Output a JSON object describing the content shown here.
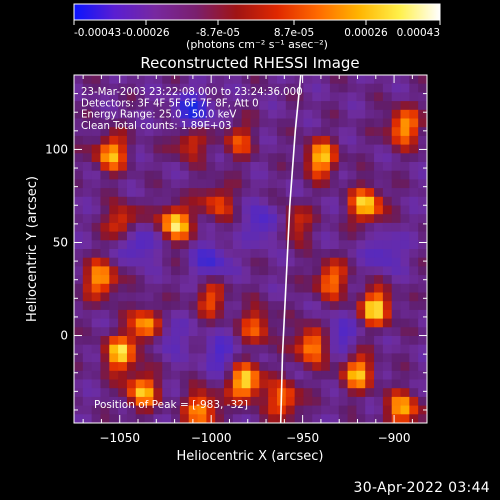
{
  "colorbar": {
    "tick_labels": [
      "-0.00043",
      "-0.00026",
      "-8.7e-05",
      "8.7e-05",
      "0.00026",
      "0.00043"
    ],
    "units_label": "(photons cm⁻² s⁻¹ asec⁻²)",
    "stops": [
      "#0a14ff",
      "#5a1ed2",
      "#7828a0",
      "#7a1f6e",
      "#a01414",
      "#e02800",
      "#ff6a00",
      "#ffb400",
      "#fff04a",
      "#ffffff"
    ]
  },
  "chart_data": {
    "type": "heatmap",
    "title": "Reconstructed RHESSI Image",
    "xlabel": "Heliocentric X (arcsec)",
    "ylabel": "Heliocentric Y (arcsec)",
    "xlim": [
      -1075,
      -882
    ],
    "ylim": [
      -47,
      140
    ],
    "x_ticks": [
      -1050,
      -1000,
      -950,
      -900
    ],
    "y_ticks": [
      0,
      50,
      100
    ],
    "x_tick_labels": [
      "−1050",
      "−1000",
      "−950",
      "−900"
    ],
    "y_tick_labels": [
      "0",
      "50",
      "100"
    ],
    "annotations": [
      "23-Mar-2003 23:22:08.000 to 23:24:36.000",
      "Detectors: 3F 4F 5F 6F 7F 8F, Att 0",
      "Energy Range: 25.0 - 50.0 keV",
      "Clean     Total counts: 1.89E+03"
    ],
    "peak_label": "Position of Peak = [-983, -32]",
    "limb_curve": [
      [
        -962,
        -47
      ],
      [
        -961,
        -10
      ],
      [
        -959,
        30
      ],
      [
        -957,
        70
      ],
      [
        -954,
        110
      ],
      [
        -951,
        140
      ]
    ],
    "hot_spots": [
      {
        "x": -1055,
        "y": 98,
        "level": 0.8
      },
      {
        "x": -1048,
        "y": 60,
        "level": 0.7
      },
      {
        "x": -1060,
        "y": 30,
        "level": 0.8
      },
      {
        "x": -1035,
        "y": 5,
        "level": 0.9
      },
      {
        "x": -1050,
        "y": -10,
        "level": 0.85
      },
      {
        "x": -1038,
        "y": -30,
        "level": 0.8
      },
      {
        "x": -1012,
        "y": 105,
        "level": 0.6
      },
      {
        "x": -1020,
        "y": 60,
        "level": 0.95
      },
      {
        "x": -997,
        "y": 72,
        "level": 0.55
      },
      {
        "x": -1000,
        "y": 20,
        "level": 0.55
      },
      {
        "x": -985,
        "y": 105,
        "level": 0.5
      },
      {
        "x": -981,
        "y": -25,
        "level": 1.0
      },
      {
        "x": -1005,
        "y": -40,
        "level": 0.8
      },
      {
        "x": -975,
        "y": 5,
        "level": 0.6
      },
      {
        "x": -940,
        "y": 95,
        "level": 0.85
      },
      {
        "x": -915,
        "y": 70,
        "level": 0.9
      },
      {
        "x": -895,
        "y": 112,
        "level": 0.8
      },
      {
        "x": -935,
        "y": 30,
        "level": 0.7
      },
      {
        "x": -910,
        "y": 15,
        "level": 0.9
      },
      {
        "x": -945,
        "y": -5,
        "level": 0.85
      },
      {
        "x": -920,
        "y": -20,
        "level": 0.8
      },
      {
        "x": -960,
        "y": -35,
        "level": 0.7
      },
      {
        "x": -895,
        "y": -40,
        "level": 0.8
      },
      {
        "x": -955,
        "y": 60,
        "level": 0.55
      }
    ],
    "cold_spots": [
      {
        "x": -1010,
        "y": 120,
        "level": 0.9
      },
      {
        "x": -1040,
        "y": 50,
        "level": 0.7
      },
      {
        "x": -1000,
        "y": 40,
        "level": 0.6
      },
      {
        "x": -1025,
        "y": 0,
        "level": 0.5
      },
      {
        "x": -970,
        "y": 60,
        "level": 0.6
      },
      {
        "x": -930,
        "y": 0,
        "level": 0.5
      },
      {
        "x": -995,
        "y": -10,
        "level": 0.5
      },
      {
        "x": -905,
        "y": 45,
        "level": 0.5
      }
    ]
  },
  "footer": {
    "timestamp": "30-Apr-2022 03:44"
  }
}
